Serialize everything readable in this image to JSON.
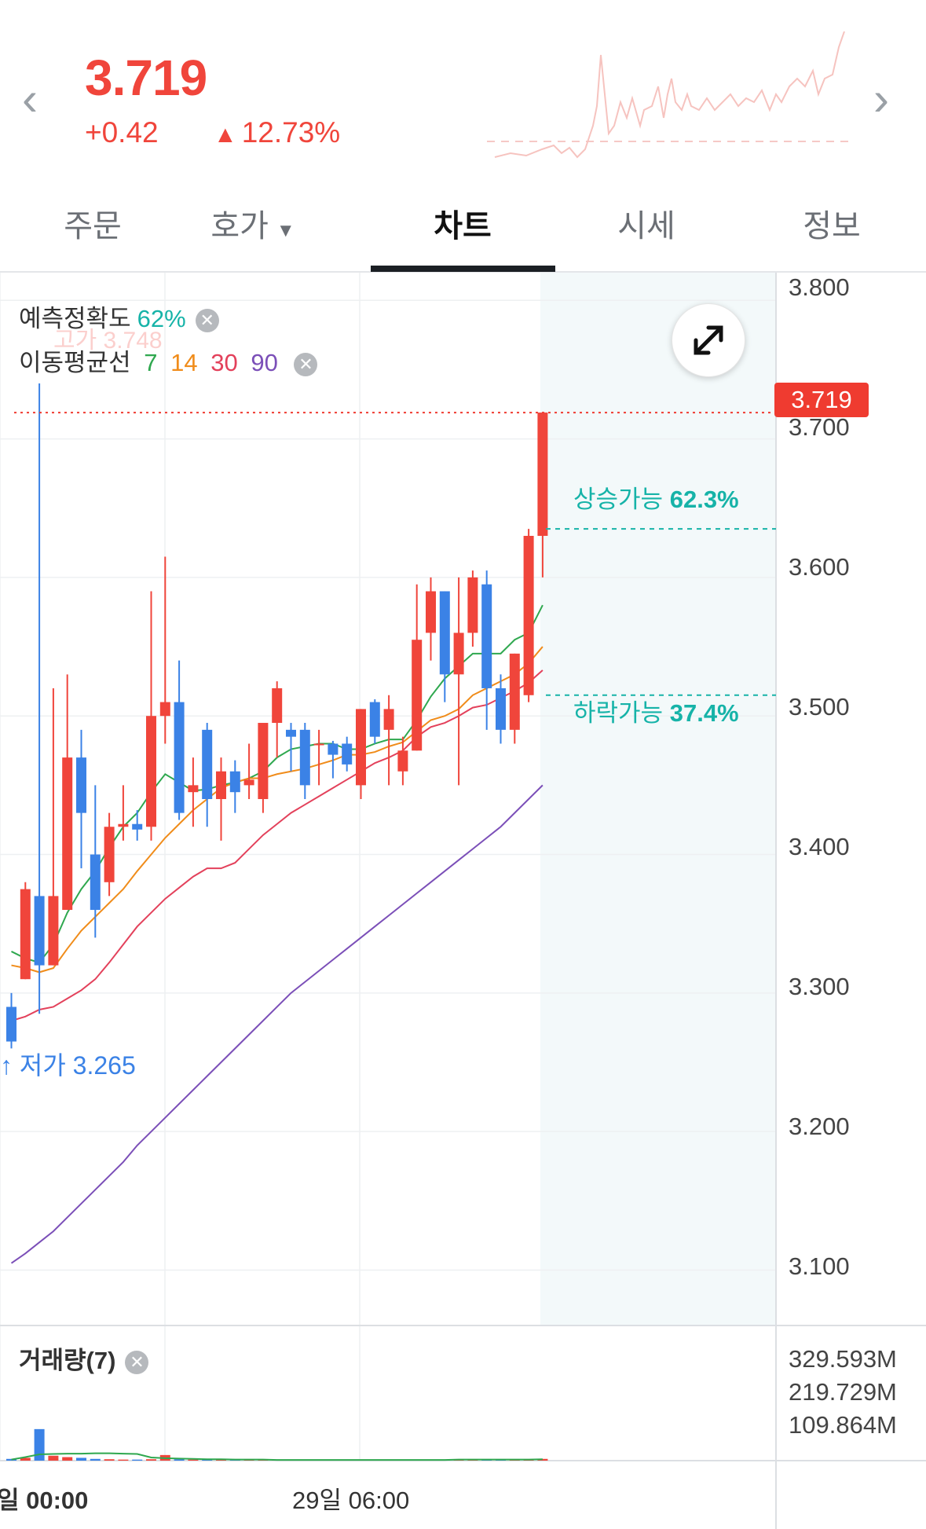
{
  "header": {
    "price": "3.719",
    "change": "+0.42",
    "change_pct": "12.73%",
    "accent_color": "#f0453b"
  },
  "tabs": [
    {
      "label": "주문"
    },
    {
      "label": "호가"
    },
    {
      "label": "차트"
    },
    {
      "label": "시세"
    },
    {
      "label": "정보"
    }
  ],
  "legend": {
    "prediction_label": "예측정확도",
    "prediction_value": "62%",
    "ma_label": "이동평균선",
    "ma_periods": [
      "7",
      "14",
      "30",
      "90"
    ],
    "ma_colors": [
      "#2fa84f",
      "#f08c1a",
      "#e3415b",
      "#7b4fb8"
    ]
  },
  "high_label": "고가 3.748",
  "low_label": "저가 3.265",
  "probability": {
    "up_label": "상승가능",
    "up_value": "62.3%",
    "down_label": "하락가능",
    "down_value": "37.4%"
  },
  "current_price_tag": "3.719",
  "price_axis": [
    "3.800",
    "3.700",
    "3.600",
    "3.500",
    "3.400",
    "3.300",
    "3.200",
    "3.100"
  ],
  "volume": {
    "label": "거래량(7)",
    "axis": [
      "329.593M",
      "219.729M",
      "109.864M"
    ]
  },
  "time_axis": [
    "일 00:00",
    "29일 06:00"
  ],
  "chart_data": {
    "type": "candlestick",
    "ylim": [
      3.06,
      3.82
    ],
    "candles": [
      {
        "o": 3.29,
        "h": 3.3,
        "l": 3.26,
        "c": 3.265
      },
      {
        "o": 3.31,
        "h": 3.38,
        "l": 3.31,
        "c": 3.375
      },
      {
        "o": 3.37,
        "h": 3.74,
        "l": 3.285,
        "c": 3.32
      },
      {
        "o": 3.32,
        "h": 3.52,
        "l": 3.32,
        "c": 3.37
      },
      {
        "o": 3.36,
        "h": 3.53,
        "l": 3.36,
        "c": 3.47
      },
      {
        "o": 3.47,
        "h": 3.49,
        "l": 3.39,
        "c": 3.43
      },
      {
        "o": 3.4,
        "h": 3.45,
        "l": 3.34,
        "c": 3.36
      },
      {
        "o": 3.38,
        "h": 3.43,
        "l": 3.37,
        "c": 3.42
      },
      {
        "o": 3.42,
        "h": 3.45,
        "l": 3.41,
        "c": 3.422
      },
      {
        "o": 3.422,
        "h": 3.432,
        "l": 3.41,
        "c": 3.418
      },
      {
        "o": 3.42,
        "h": 3.59,
        "l": 3.41,
        "c": 3.5
      },
      {
        "o": 3.5,
        "h": 3.615,
        "l": 3.48,
        "c": 3.51
      },
      {
        "o": 3.51,
        "h": 3.54,
        "l": 3.425,
        "c": 3.43
      },
      {
        "o": 3.445,
        "h": 3.47,
        "l": 3.42,
        "c": 3.45
      },
      {
        "o": 3.49,
        "h": 3.495,
        "l": 3.42,
        "c": 3.44
      },
      {
        "o": 3.44,
        "h": 3.47,
        "l": 3.41,
        "c": 3.46
      },
      {
        "o": 3.46,
        "h": 3.468,
        "l": 3.43,
        "c": 3.445
      },
      {
        "o": 3.45,
        "h": 3.48,
        "l": 3.44,
        "c": 3.454
      },
      {
        "o": 3.44,
        "h": 3.49,
        "l": 3.43,
        "c": 3.495
      },
      {
        "o": 3.495,
        "h": 3.525,
        "l": 3.47,
        "c": 3.52
      },
      {
        "o": 3.49,
        "h": 3.495,
        "l": 3.46,
        "c": 3.485
      },
      {
        "o": 3.49,
        "h": 3.495,
        "l": 3.44,
        "c": 3.45
      },
      {
        "o": 3.48,
        "h": 3.49,
        "l": 3.45,
        "c": 3.48
      },
      {
        "o": 3.48,
        "h": 3.482,
        "l": 3.455,
        "c": 3.472
      },
      {
        "o": 3.48,
        "h": 3.485,
        "l": 3.46,
        "c": 3.465
      },
      {
        "o": 3.45,
        "h": 3.505,
        "l": 3.44,
        "c": 3.505
      },
      {
        "o": 3.51,
        "h": 3.512,
        "l": 3.48,
        "c": 3.485
      },
      {
        "o": 3.49,
        "h": 3.515,
        "l": 3.45,
        "c": 3.505
      },
      {
        "o": 3.46,
        "h": 3.485,
        "l": 3.45,
        "c": 3.475
      },
      {
        "o": 3.475,
        "h": 3.595,
        "l": 3.475,
        "c": 3.555
      },
      {
        "o": 3.56,
        "h": 3.6,
        "l": 3.54,
        "c": 3.59
      },
      {
        "o": 3.59,
        "h": 3.59,
        "l": 3.51,
        "c": 3.53
      },
      {
        "o": 3.53,
        "h": 3.6,
        "l": 3.45,
        "c": 3.56
      },
      {
        "o": 3.56,
        "h": 3.605,
        "l": 3.55,
        "c": 3.6
      },
      {
        "o": 3.595,
        "h": 3.605,
        "l": 3.49,
        "c": 3.52
      },
      {
        "o": 3.52,
        "h": 3.53,
        "l": 3.48,
        "c": 3.49
      },
      {
        "o": 3.49,
        "h": 3.545,
        "l": 3.48,
        "c": 3.545
      },
      {
        "o": 3.515,
        "h": 3.635,
        "l": 3.51,
        "c": 3.63
      },
      {
        "o": 3.63,
        "h": 3.719,
        "l": 3.6,
        "c": 3.719
      }
    ],
    "ma": [
      {
        "period": "7",
        "values": [
          3.33,
          3.325,
          3.322,
          3.335,
          3.358,
          3.375,
          3.388,
          3.405,
          3.42,
          3.43,
          3.445,
          3.458,
          3.452,
          3.446,
          3.447,
          3.45,
          3.452,
          3.455,
          3.46,
          3.47,
          3.476,
          3.478,
          3.48,
          3.48,
          3.476,
          3.476,
          3.48,
          3.483,
          3.483,
          3.497,
          3.514,
          3.527,
          3.536,
          3.545,
          3.545,
          3.545,
          3.555,
          3.56,
          3.58
        ]
      },
      {
        "period": "14",
        "values": [
          3.32,
          3.318,
          3.315,
          3.318,
          3.332,
          3.345,
          3.355,
          3.365,
          3.375,
          3.388,
          3.4,
          3.412,
          3.422,
          3.432,
          3.44,
          3.448,
          3.452,
          3.455,
          3.455,
          3.458,
          3.46,
          3.462,
          3.465,
          3.468,
          3.472,
          3.472,
          3.474,
          3.478,
          3.481,
          3.489,
          3.497,
          3.5,
          3.505,
          3.515,
          3.52,
          3.525,
          3.53,
          3.538,
          3.55
        ]
      },
      {
        "period": "30",
        "values": [
          3.28,
          3.283,
          3.288,
          3.29,
          3.296,
          3.302,
          3.31,
          3.322,
          3.335,
          3.348,
          3.358,
          3.368,
          3.376,
          3.384,
          3.39,
          3.39,
          3.394,
          3.404,
          3.414,
          3.422,
          3.43,
          3.436,
          3.442,
          3.448,
          3.454,
          3.46,
          3.466,
          3.47,
          3.475,
          3.485,
          3.492,
          3.495,
          3.5,
          3.506,
          3.508,
          3.513,
          3.518,
          3.524,
          3.533
        ]
      },
      {
        "period": "90",
        "values": [
          3.105,
          3.112,
          3.12,
          3.128,
          3.138,
          3.148,
          3.158,
          3.168,
          3.178,
          3.19,
          3.2,
          3.21,
          3.22,
          3.23,
          3.24,
          3.25,
          3.26,
          3.27,
          3.28,
          3.29,
          3.3,
          3.308,
          3.316,
          3.324,
          3.332,
          3.34,
          3.348,
          3.356,
          3.364,
          3.372,
          3.38,
          3.388,
          3.396,
          3.404,
          3.412,
          3.42,
          3.43,
          3.44,
          3.45
        ]
      }
    ],
    "volume_ylim": [
      0,
      329.593
    ],
    "volume_values": [
      5,
      8,
      90,
      14,
      10,
      8,
      5,
      4,
      3,
      3,
      4,
      16,
      4,
      3,
      3,
      3,
      2,
      2,
      2,
      2,
      2,
      2,
      2,
      2,
      2,
      2,
      2,
      2,
      2,
      2,
      3,
      3,
      4,
      3,
      3,
      3,
      3,
      3,
      5
    ],
    "volume_ma": [
      3,
      10,
      18,
      19,
      20,
      20,
      21,
      21,
      20,
      19,
      9,
      7,
      6,
      5,
      4,
      4,
      3,
      3,
      3,
      2,
      2,
      2,
      2,
      2,
      2,
      2,
      2,
      2,
      2,
      2,
      2,
      2,
      3,
      3,
      3,
      3,
      3,
      3,
      4
    ],
    "up_color": "#f0453b",
    "down_color": "#3b82e6"
  }
}
